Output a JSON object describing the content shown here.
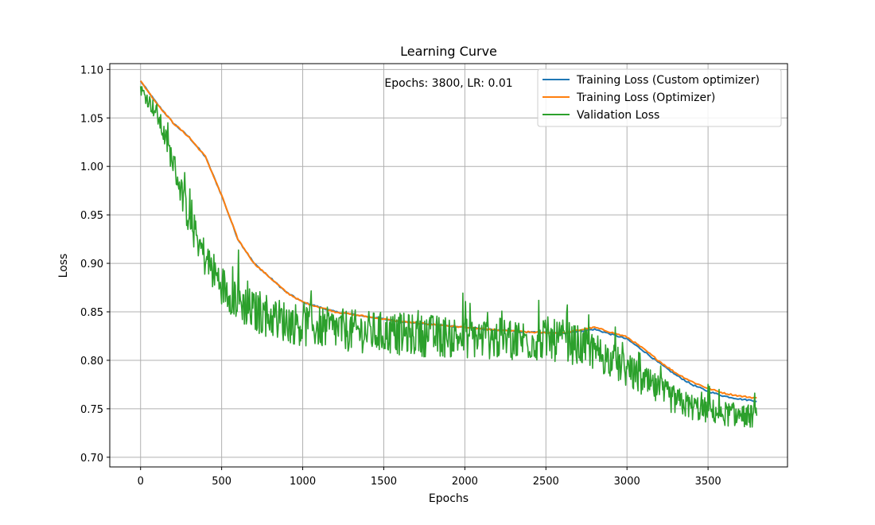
{
  "chart_data": {
    "type": "line",
    "title": "Learning Curve",
    "xlabel": "Epochs",
    "ylabel": "Loss",
    "xlim": [
      -190,
      3990
    ],
    "ylim": [
      0.69,
      1.106
    ],
    "xticks": [
      0,
      500,
      1000,
      1500,
      2000,
      2500,
      3000,
      3500
    ],
    "xtick_labels": [
      "0",
      "500",
      "1000",
      "1500",
      "2000",
      "2500",
      "3000",
      "3500"
    ],
    "yticks": [
      0.7,
      0.75,
      0.8,
      0.85,
      0.9,
      0.95,
      1.0,
      1.05,
      1.1
    ],
    "ytick_labels": [
      "0.70",
      "0.75",
      "0.80",
      "0.85",
      "0.90",
      "0.95",
      "1.00",
      "1.05",
      "1.10"
    ],
    "grid": true,
    "legend_position": "top-right",
    "annotation": "Epochs: 3800, LR: 0.01",
    "series": [
      {
        "name": "Training Loss (Custom optimizer)",
        "color": "#1f77b4",
        "x": [
          0,
          100,
          200,
          300,
          400,
          500,
          600,
          700,
          800,
          900,
          1000,
          1200,
          1400,
          1600,
          1800,
          2000,
          2200,
          2400,
          2600,
          2800,
          3000,
          3100,
          3200,
          3300,
          3400,
          3500,
          3600,
          3700,
          3800
        ],
        "y": [
          1.088,
          1.065,
          1.045,
          1.03,
          1.01,
          0.97,
          0.925,
          0.9,
          0.885,
          0.87,
          0.86,
          0.85,
          0.845,
          0.84,
          0.837,
          0.834,
          0.831,
          0.829,
          0.828,
          0.832,
          0.822,
          0.81,
          0.797,
          0.785,
          0.775,
          0.768,
          0.763,
          0.76,
          0.758
        ]
      },
      {
        "name": "Training Loss (Optimizer)",
        "color": "#ff7f0e",
        "x": [
          0,
          100,
          200,
          300,
          400,
          500,
          600,
          700,
          800,
          900,
          1000,
          1200,
          1400,
          1600,
          1800,
          2000,
          2200,
          2400,
          2600,
          2800,
          3000,
          3100,
          3200,
          3300,
          3400,
          3500,
          3600,
          3700,
          3800
        ],
        "y": [
          1.088,
          1.065,
          1.045,
          1.03,
          1.01,
          0.97,
          0.925,
          0.9,
          0.885,
          0.87,
          0.86,
          0.85,
          0.845,
          0.84,
          0.837,
          0.834,
          0.831,
          0.829,
          0.828,
          0.834,
          0.824,
          0.812,
          0.799,
          0.787,
          0.778,
          0.771,
          0.766,
          0.763,
          0.761
        ]
      },
      {
        "name": "Validation Loss",
        "color": "#2ca02c",
        "x": [
          0,
          100,
          200,
          300,
          400,
          500,
          600,
          700,
          800,
          900,
          1000,
          1200,
          1400,
          1600,
          1800,
          2000,
          2200,
          2400,
          2600,
          2800,
          3000,
          3100,
          3200,
          3300,
          3400,
          3500,
          3600,
          3700,
          3800
        ],
        "y": [
          1.08,
          1.055,
          1.005,
          0.945,
          0.905,
          0.878,
          0.862,
          0.85,
          0.845,
          0.84,
          0.836,
          0.832,
          0.829,
          0.827,
          0.825,
          0.824,
          0.822,
          0.821,
          0.82,
          0.81,
          0.79,
          0.778,
          0.768,
          0.758,
          0.752,
          0.748,
          0.745,
          0.743,
          0.742
        ],
        "noise_amplitude": [
          0.006,
          0.01,
          0.014,
          0.018,
          0.02,
          0.021,
          0.022,
          0.022,
          0.022,
          0.022,
          0.022,
          0.022,
          0.022,
          0.022,
          0.022,
          0.022,
          0.022,
          0.022,
          0.022,
          0.02,
          0.018,
          0.017,
          0.016,
          0.015,
          0.014,
          0.013,
          0.013,
          0.012,
          0.012
        ]
      }
    ]
  }
}
